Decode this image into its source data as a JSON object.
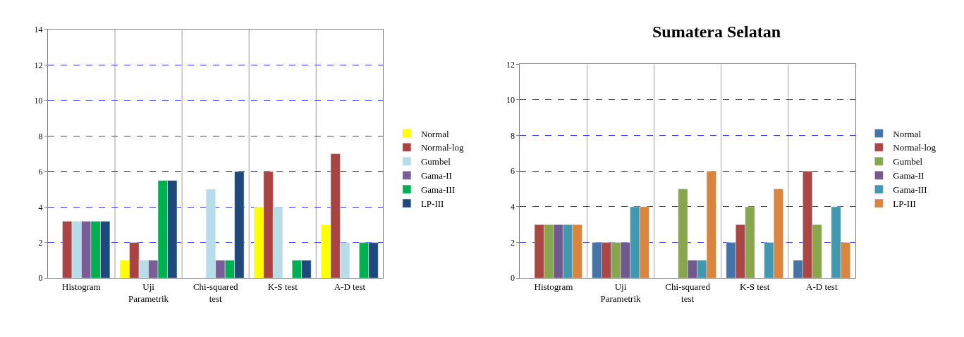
{
  "chart_data": [
    {
      "type": "bar",
      "categories": [
        "Histogram",
        "Uji Parametrik",
        "Chi-squared test",
        "K-S test",
        "A-D test"
      ],
      "series": [
        {
          "name": "Normal",
          "color": "#ffff00",
          "values": [
            null,
            1,
            null,
            4,
            3
          ]
        },
        {
          "name": "Normal-log",
          "color": "#a94442",
          "values": [
            3.2,
            2,
            null,
            6,
            7
          ]
        },
        {
          "name": "Gumbel",
          "color": "#b7dde8",
          "values": [
            3.2,
            1,
            5,
            4,
            2
          ]
        },
        {
          "name": "Gama-II",
          "color": "#7a5c96",
          "values": [
            3.2,
            1,
            1,
            null,
            null
          ]
        },
        {
          "name": "Gama-III",
          "color": "#00b050",
          "values": [
            3.2,
            5.5,
            1,
            1,
            2
          ]
        },
        {
          "name": "LP-III",
          "color": "#1f497d",
          "values": [
            3.2,
            5.5,
            6,
            1,
            2
          ]
        }
      ],
      "ylim": [
        0,
        14
      ],
      "yticks": [
        0,
        2,
        4,
        6,
        8,
        10,
        12,
        14
      ],
      "grid": true,
      "legend": "right"
    },
    {
      "type": "bar",
      "title": "Sumatera Selatan",
      "categories": [
        "Histogram",
        "Uji Parametrik",
        "Chi-squared test",
        "K-S test",
        "A-D test"
      ],
      "series": [
        {
          "name": "Normal",
          "color": "#4572a7",
          "values": [
            null,
            2,
            null,
            2,
            1
          ]
        },
        {
          "name": "Normal-log",
          "color": "#aa4643",
          "values": [
            3,
            2,
            null,
            3,
            6
          ]
        },
        {
          "name": "Gumbel",
          "color": "#89a54e",
          "values": [
            3,
            2,
            5,
            4,
            3
          ]
        },
        {
          "name": "Gama-II",
          "color": "#71588f",
          "values": [
            3,
            2,
            1,
            null,
            null
          ]
        },
        {
          "name": "Gama-III",
          "color": "#4198af",
          "values": [
            3,
            4,
            1,
            2,
            4
          ]
        },
        {
          "name": "LP-III",
          "color": "#db843d",
          "values": [
            3,
            4,
            6,
            5,
            2
          ]
        }
      ],
      "ylim": [
        0,
        12
      ],
      "yticks": [
        0,
        2,
        4,
        6,
        8,
        10,
        12
      ],
      "grid": true,
      "legend": "right"
    }
  ]
}
